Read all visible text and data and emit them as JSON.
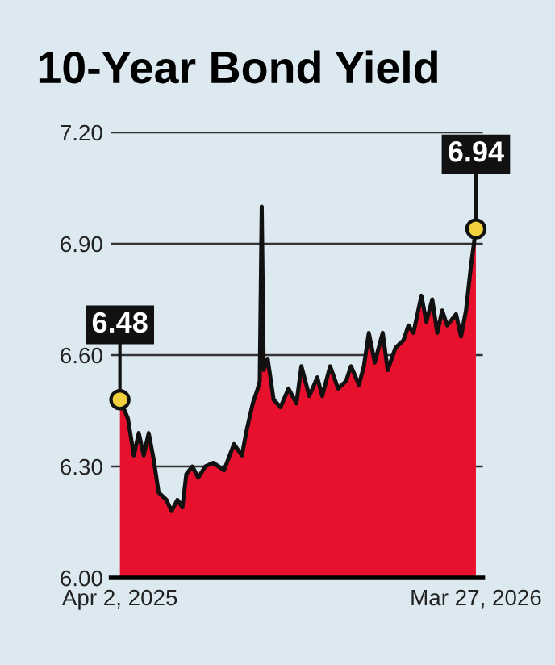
{
  "chart_data": {
    "type": "area",
    "title": "10-Year Bond Yield",
    "x": [
      "2025-04-02",
      "2025-04-10",
      "2025-04-16",
      "2025-04-21",
      "2025-04-26",
      "2025-05-01",
      "2025-05-06",
      "2025-05-11",
      "2025-05-19",
      "2025-05-24",
      "2025-05-30",
      "2025-06-04",
      "2025-06-08",
      "2025-06-14",
      "2025-06-20",
      "2025-06-27",
      "2025-07-05",
      "2025-07-16",
      "2025-07-26",
      "2025-08-03",
      "2025-08-08",
      "2025-08-14",
      "2025-08-19",
      "2025-08-21",
      "2025-08-23",
      "2025-08-25",
      "2025-08-29",
      "2025-09-04",
      "2025-09-11",
      "2025-09-19",
      "2025-09-27",
      "2025-10-02",
      "2025-10-10",
      "2025-10-18",
      "2025-10-23",
      "2025-10-31",
      "2025-11-08",
      "2025-11-16",
      "2025-11-21",
      "2025-11-29",
      "2025-12-04",
      "2025-12-09",
      "2025-12-15",
      "2025-12-23",
      "2025-12-28",
      "2026-01-05",
      "2026-01-13",
      "2026-01-18",
      "2026-01-23",
      "2026-01-31",
      "2026-02-05",
      "2026-02-11",
      "2026-02-16",
      "2026-02-21",
      "2026-02-26",
      "2026-03-07",
      "2026-03-12",
      "2026-03-17",
      "2026-03-22",
      "2026-03-27"
    ],
    "series": [
      {
        "color": "#e8112d",
        "values": [
          6.48,
          6.43,
          6.33,
          6.39,
          6.33,
          6.39,
          6.32,
          6.23,
          6.21,
          6.18,
          6.21,
          6.19,
          6.28,
          6.3,
          6.27,
          6.3,
          6.31,
          6.29,
          6.36,
          6.33,
          6.4,
          6.47,
          6.51,
          6.53,
          7.0,
          6.56,
          6.59,
          6.48,
          6.46,
          6.51,
          6.47,
          6.57,
          6.49,
          6.54,
          6.49,
          6.57,
          6.51,
          6.53,
          6.57,
          6.52,
          6.57,
          6.66,
          6.58,
          6.66,
          6.56,
          6.62,
          6.64,
          6.68,
          6.66,
          6.76,
          6.69,
          6.75,
          6.66,
          6.72,
          6.68,
          6.71,
          6.65,
          6.72,
          6.84,
          6.94
        ]
      }
    ],
    "ylim": [
      6.0,
      7.2
    ],
    "yticks": [
      {
        "value": 6.0,
        "label": "6.00"
      },
      {
        "value": 6.3,
        "label": "6.30"
      },
      {
        "value": 6.6,
        "label": "6.60"
      },
      {
        "value": 6.9,
        "label": "6.90"
      },
      {
        "value": 7.2,
        "label": "7.20"
      }
    ],
    "xlim": [
      "2025-03-24",
      "2026-04-03"
    ],
    "xticks": [
      {
        "value": "2025-04-02",
        "label": "Apr 2, 2025"
      },
      {
        "value": "2026-03-27",
        "label": "Mar 27, 2026"
      }
    ],
    "grid": "y",
    "annotations": [
      {
        "text": "6.48",
        "x": "2025-04-02",
        "y": 6.48
      },
      {
        "text": "6.94",
        "x": "2026-03-27",
        "y": 6.94
      }
    ]
  }
}
